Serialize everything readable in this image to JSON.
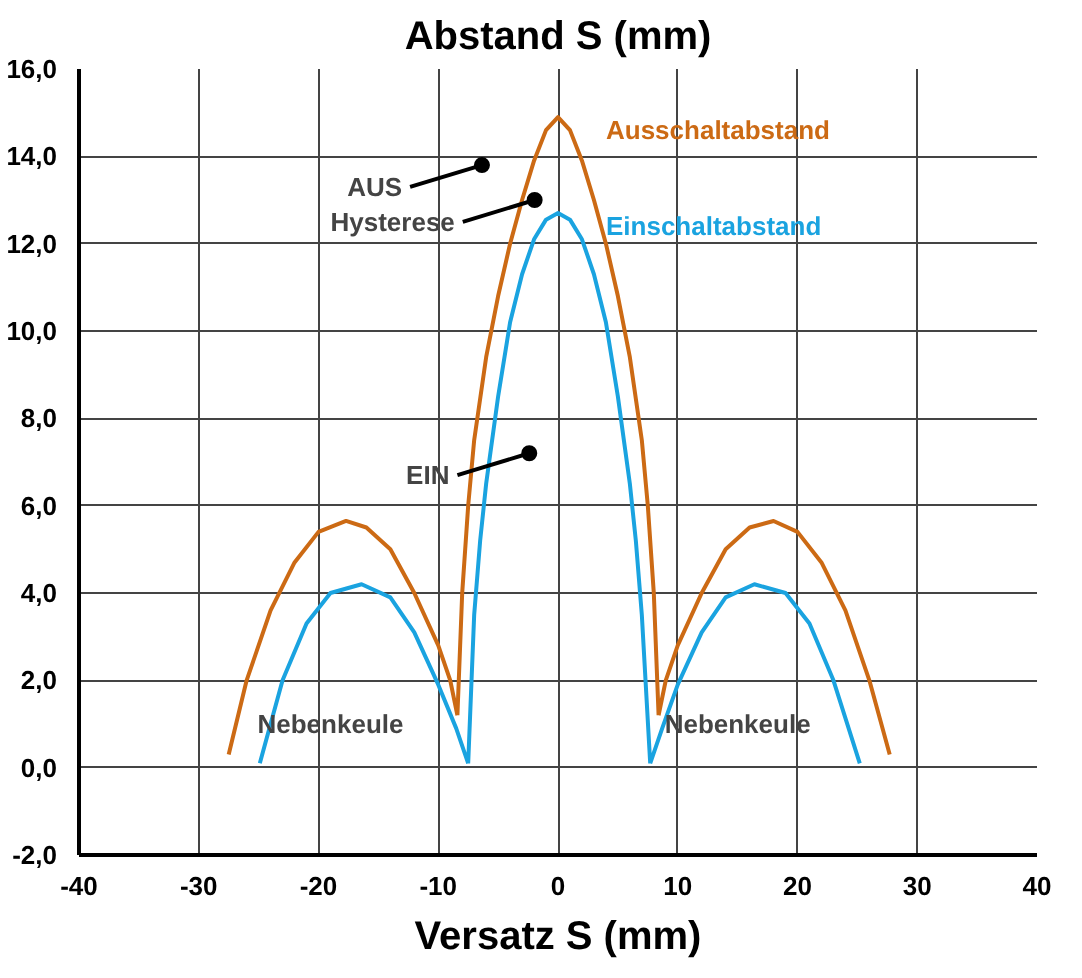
{
  "chart_data": {
    "type": "line",
    "title": "Abstand S (mm)",
    "xlabel": "Versatz S (mm)",
    "xlim": [
      -40,
      40
    ],
    "ylim": [
      -2,
      16
    ],
    "xticks": [
      -40,
      -30,
      -20,
      -10,
      0,
      10,
      20,
      30,
      40
    ],
    "yticks": [
      {
        "value": -2,
        "label": "-2,0"
      },
      {
        "value": 0,
        "label": "0,0"
      },
      {
        "value": 2,
        "label": "2,0"
      },
      {
        "value": 4,
        "label": "4,0"
      },
      {
        "value": 6,
        "label": "6,0"
      },
      {
        "value": 8,
        "label": "8,0"
      },
      {
        "value": 10,
        "label": "10,0"
      },
      {
        "value": 12,
        "label": "12,0"
      },
      {
        "value": 14,
        "label": "14,0"
      },
      {
        "value": 16,
        "label": "16,0"
      }
    ],
    "grid": true,
    "line_style": "solid",
    "marker": "none",
    "series": [
      {
        "name": "Ausschaltabstand",
        "color": "#cc6a14",
        "x": [
          -27.5,
          -26,
          -24,
          -22,
          -20,
          -17.7,
          -16,
          -14,
          -12,
          -10,
          -9,
          -8.4,
          null,
          -8.4,
          -8,
          -7.5,
          -7,
          -6,
          -5,
          -4,
          -3,
          -2,
          -1,
          0,
          1,
          2,
          3,
          4,
          5,
          6,
          7,
          7.5,
          8,
          8.4,
          null,
          8.4,
          9,
          10,
          12,
          14,
          16,
          18,
          20,
          22,
          24,
          26,
          27.7
        ],
        "values": [
          0.3,
          2.0,
          3.6,
          4.7,
          5.4,
          5.65,
          5.5,
          5.0,
          4.0,
          2.8,
          2.0,
          1.2,
          null,
          1.2,
          4.0,
          6.0,
          7.5,
          9.4,
          10.8,
          12.0,
          13.0,
          13.9,
          14.6,
          14.9,
          14.6,
          13.9,
          13.0,
          12.0,
          10.8,
          9.4,
          7.5,
          6.0,
          4.0,
          1.2,
          null,
          1.2,
          2.0,
          2.8,
          4.0,
          5.0,
          5.5,
          5.65,
          5.4,
          4.7,
          3.6,
          2.0,
          0.3
        ]
      },
      {
        "name": "Einschaltabstand",
        "color": "#1aa3e0",
        "x": [
          -24.9,
          -23,
          -21,
          -19,
          -16.4,
          -14,
          -12,
          -10,
          -8.5,
          -7.5,
          null,
          -7.5,
          -7,
          -6.5,
          -6,
          -5,
          -4,
          -3,
          -2,
          -1,
          0,
          1,
          2,
          3,
          4,
          5,
          6,
          6.5,
          7,
          7.7,
          null,
          7.7,
          8.7,
          10,
          12,
          14,
          16.4,
          19,
          21,
          23,
          25.2
        ],
        "values": [
          0.1,
          2.0,
          3.3,
          4.0,
          4.2,
          3.9,
          3.1,
          1.9,
          0.9,
          0.1,
          null,
          0.1,
          3.5,
          5.2,
          6.5,
          8.5,
          10.2,
          11.3,
          12.1,
          12.55,
          12.7,
          12.55,
          12.1,
          11.3,
          10.2,
          8.5,
          6.5,
          5.2,
          3.5,
          0.1,
          null,
          0.1,
          0.9,
          1.9,
          3.1,
          3.9,
          4.2,
          4.0,
          3.3,
          2.0,
          0.1
        ]
      }
    ],
    "annotations": [
      {
        "text": "AUS",
        "x": -6.35,
        "y": 13.8
      },
      {
        "text": "Hysterese",
        "x": -1.95,
        "y": 13.0
      },
      {
        "text": "EIN",
        "x": -2.4,
        "y": 7.2
      },
      "Nebenkeule",
      "Nebenkeule"
    ]
  }
}
